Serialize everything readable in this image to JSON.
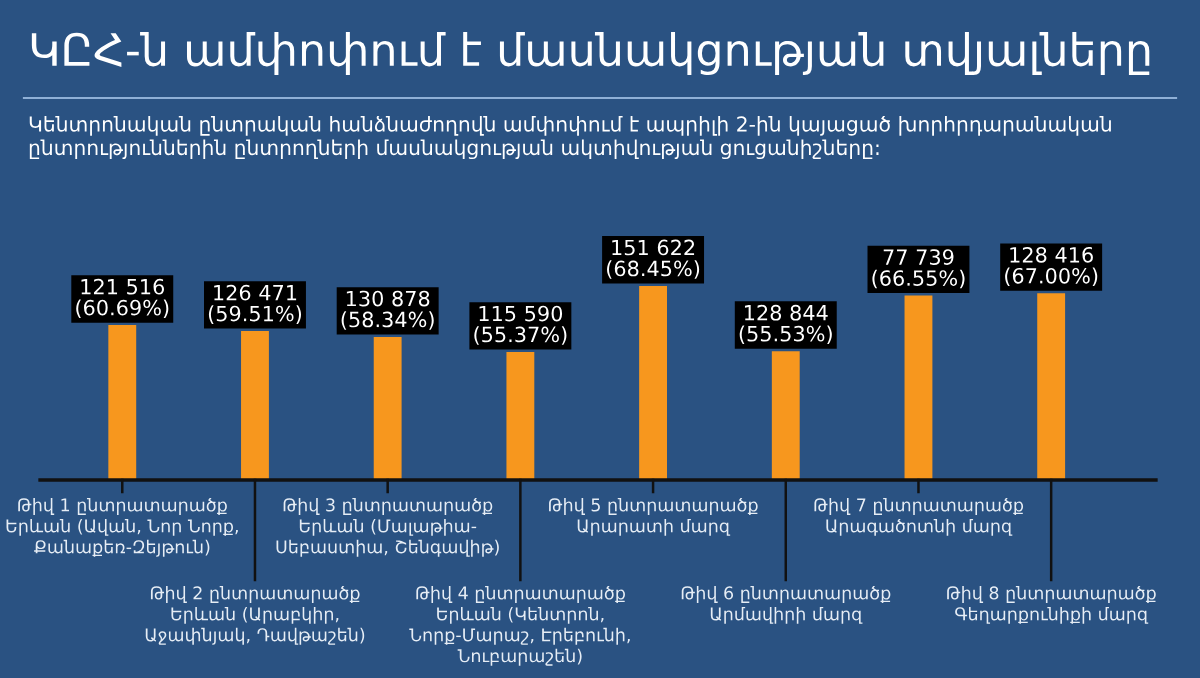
{
  "chart_data": {
    "type": "bar",
    "title": "ԿԸՀ-ն ամփոփում է մասնակցության տվյալները",
    "subtitle": "Կենտրոնական ընտրական հանձնաժողովն ամփոփում է ապրիլի 2-ին կայացած խորհրդարանական\nընտրություններին ընտրողների մասնակցության ակտիվության ցուցանիշները:",
    "categories": [
      "Թիվ 1 ընտրատարածք\nԵրևան (Ավան, Նոր Նորք,\nՔանաքեռ-Զեյթուն)",
      "Թիվ 2 ընտրատարածք\nԵրևան (Արաբկիր,\nԱջափնյակ, Դավթաշեն)",
      "Թիվ 3 ընտրատարածք\nԵրևան (Մալաթիա-\nՍեբաստիա, Շենգավիթ)",
      "Թիվ 4 ընտրատարածք\nԵրևան (Կենտրոն,\nՆորք-Մարաշ, Էրեբունի,\nՆուբարաշեն)",
      "Թիվ 5 ընտրատարածք\nԱրարատի մարզ",
      "Թիվ 6 ընտրատարածք\nԱրմավիրի մարզ",
      "Թիվ 7 ընտրատարածք\nԱրագածոտնի մարզ",
      "Թիվ 8 ընտրատարածք\nԳեղարքունիքի մարզ"
    ],
    "values": [
      60.69,
      59.51,
      58.34,
      55.37,
      68.45,
      55.53,
      66.55,
      67.0
    ],
    "ylim": [
      30,
      72
    ],
    "value_labels": [
      "121 516\n(60.69%)",
      "126 471\n(59.51%)",
      "130 878\n(58.34%)",
      "115 590\n(55.37%)",
      "151 622\n(68.45%)",
      "128 844\n(55.53%)",
      "77 739\n(66.55%)",
      "128 416\n(67.00%)"
    ],
    "color": "#f7971e",
    "legend": false
  }
}
